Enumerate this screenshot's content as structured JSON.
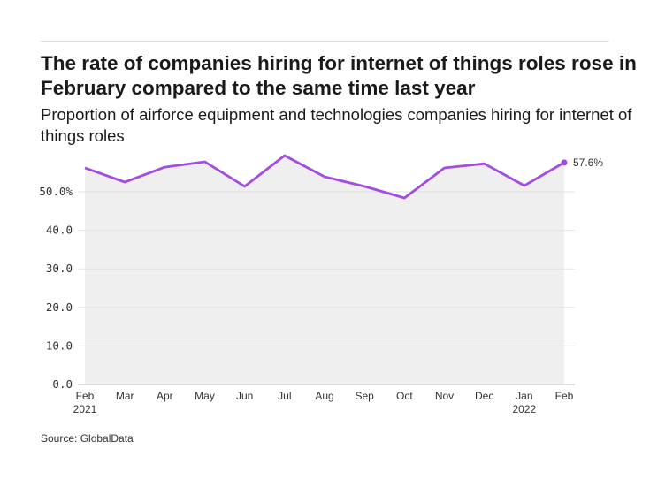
{
  "title": "The rate of companies hiring for internet of things roles rose in February compared to the same time last year",
  "subtitle": "Proportion of airforce equipment and technologies companies hiring for internet of things roles",
  "source": "Source: GlobalData",
  "chart_data": {
    "type": "area",
    "categories": [
      "Feb",
      "Mar",
      "Apr",
      "May",
      "Jun",
      "Jul",
      "Aug",
      "Sep",
      "Oct",
      "Nov",
      "Dec",
      "Jan",
      "Feb"
    ],
    "category_years": [
      "2021",
      "",
      "",
      "",
      "",
      "",
      "",
      "",
      "",
      "",
      "",
      "2022",
      ""
    ],
    "values": [
      56.2,
      52.5,
      56.4,
      57.8,
      51.4,
      59.4,
      53.9,
      51.4,
      48.4,
      56.2,
      57.3,
      51.6,
      57.6
    ],
    "end_label": "57.6%",
    "yticks": [
      "0.0",
      "10.0",
      "20.0",
      "30.0",
      "40.0",
      "50.0%"
    ],
    "ylim": [
      0,
      60
    ],
    "grid": true,
    "line_color": "#a24de0",
    "fill_color": "#efefef"
  }
}
